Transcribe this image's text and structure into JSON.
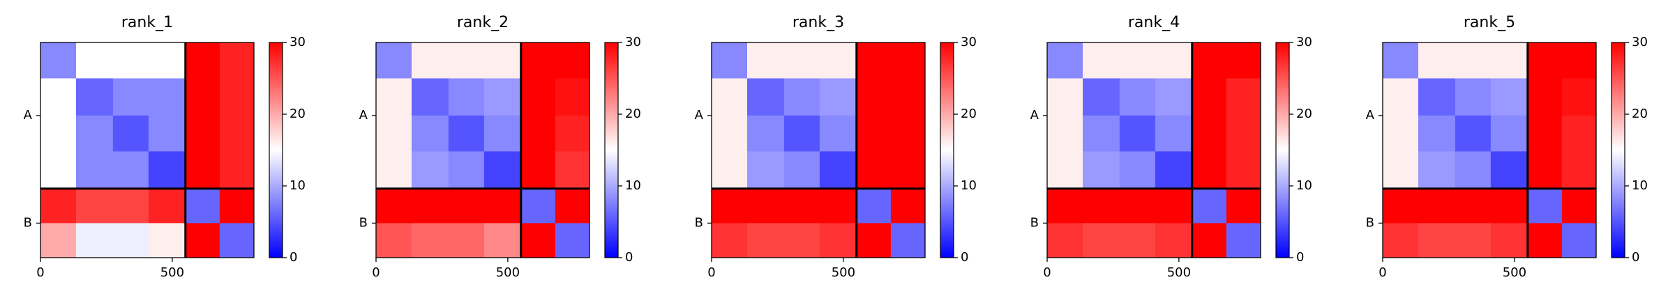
{
  "chart_data": [
    {
      "type": "heatmap",
      "title": "rank_1",
      "x_edges": [
        0,
        135,
        275,
        410,
        550,
        680,
        810
      ],
      "y_edges": [
        0,
        135,
        275,
        410,
        550,
        680,
        810
      ],
      "z": [
        [
          8,
          15,
          15,
          15,
          30,
          28
        ],
        [
          15,
          6,
          8,
          8,
          30,
          28
        ],
        [
          15,
          8,
          5,
          8,
          30,
          28
        ],
        [
          15,
          8,
          8,
          4,
          30,
          28
        ],
        [
          28,
          26,
          26,
          28,
          6,
          30
        ],
        [
          20,
          14,
          14,
          16,
          30,
          6
        ]
      ],
      "chain_breaks": [
        550
      ],
      "colormap": [
        "#0000ff",
        "#ffffff",
        "#ff0000"
      ],
      "clim": [
        0,
        30
      ],
      "cticks": [
        0,
        10,
        20,
        30
      ],
      "xlim": [
        0,
        810
      ],
      "ylim": [
        810,
        0
      ],
      "xticks": [
        0,
        500
      ],
      "yticks": [
        {
          "value": 275,
          "label": "A"
        },
        {
          "value": 680,
          "label": "B"
        }
      ]
    },
    {
      "type": "heatmap",
      "title": "rank_2",
      "x_edges": [
        0,
        135,
        275,
        410,
        550,
        680,
        810
      ],
      "y_edges": [
        0,
        135,
        275,
        410,
        550,
        680,
        810
      ],
      "z": [
        [
          8,
          16,
          16,
          16,
          30,
          30
        ],
        [
          16,
          6,
          8,
          9,
          30,
          29
        ],
        [
          16,
          8,
          5,
          8,
          30,
          28
        ],
        [
          16,
          9,
          8,
          4,
          30,
          27
        ],
        [
          30,
          30,
          30,
          30,
          6,
          30
        ],
        [
          25,
          24,
          24,
          22,
          30,
          6
        ]
      ],
      "chain_breaks": [
        550
      ],
      "colormap": [
        "#0000ff",
        "#ffffff",
        "#ff0000"
      ],
      "clim": [
        0,
        30
      ],
      "cticks": [
        0,
        10,
        20,
        30
      ],
      "xlim": [
        0,
        810
      ],
      "ylim": [
        810,
        0
      ],
      "xticks": [
        0,
        500
      ],
      "yticks": [
        {
          "value": 275,
          "label": "A"
        },
        {
          "value": 680,
          "label": "B"
        }
      ]
    },
    {
      "type": "heatmap",
      "title": "rank_3",
      "x_edges": [
        0,
        135,
        275,
        410,
        550,
        680,
        810
      ],
      "y_edges": [
        0,
        135,
        275,
        410,
        550,
        680,
        810
      ],
      "z": [
        [
          8,
          16,
          16,
          16,
          30,
          30
        ],
        [
          16,
          6,
          8,
          9,
          30,
          30
        ],
        [
          16,
          8,
          5,
          8,
          30,
          30
        ],
        [
          16,
          9,
          8,
          4,
          30,
          30
        ],
        [
          30,
          30,
          30,
          30,
          6,
          30
        ],
        [
          27,
          26,
          26,
          27,
          30,
          6
        ]
      ],
      "chain_breaks": [
        550
      ],
      "colormap": [
        "#0000ff",
        "#ffffff",
        "#ff0000"
      ],
      "clim": [
        0,
        30
      ],
      "cticks": [
        0,
        10,
        20,
        30
      ],
      "xlim": [
        0,
        810
      ],
      "ylim": [
        810,
        0
      ],
      "xticks": [
        0,
        500
      ],
      "yticks": [
        {
          "value": 275,
          "label": "A"
        },
        {
          "value": 680,
          "label": "B"
        }
      ]
    },
    {
      "type": "heatmap",
      "title": "rank_4",
      "x_edges": [
        0,
        135,
        275,
        410,
        550,
        680,
        810
      ],
      "y_edges": [
        0,
        135,
        275,
        410,
        550,
        680,
        810
      ],
      "z": [
        [
          8,
          16,
          16,
          16,
          30,
          30
        ],
        [
          16,
          6,
          8,
          9,
          30,
          28
        ],
        [
          16,
          8,
          5,
          8,
          30,
          28
        ],
        [
          16,
          9,
          8,
          4,
          30,
          28
        ],
        [
          30,
          30,
          30,
          30,
          6,
          30
        ],
        [
          27,
          26,
          26,
          27,
          30,
          6
        ]
      ],
      "chain_breaks": [
        550
      ],
      "colormap": [
        "#0000ff",
        "#ffffff",
        "#ff0000"
      ],
      "clim": [
        0,
        30
      ],
      "cticks": [
        0,
        10,
        20,
        30
      ],
      "xlim": [
        0,
        810
      ],
      "ylim": [
        810,
        0
      ],
      "xticks": [
        0,
        500
      ],
      "yticks": [
        {
          "value": 275,
          "label": "A"
        },
        {
          "value": 680,
          "label": "B"
        }
      ]
    },
    {
      "type": "heatmap",
      "title": "rank_5",
      "x_edges": [
        0,
        135,
        275,
        410,
        550,
        680,
        810
      ],
      "y_edges": [
        0,
        135,
        275,
        410,
        550,
        680,
        810
      ],
      "z": [
        [
          8,
          16,
          16,
          16,
          30,
          30
        ],
        [
          16,
          6,
          8,
          9,
          30,
          29
        ],
        [
          16,
          8,
          5,
          8,
          30,
          28
        ],
        [
          16,
          9,
          8,
          4,
          30,
          28
        ],
        [
          30,
          30,
          30,
          30,
          6,
          30
        ],
        [
          27,
          26,
          26,
          27,
          30,
          6
        ]
      ],
      "chain_breaks": [
        550
      ],
      "colormap": [
        "#0000ff",
        "#ffffff",
        "#ff0000"
      ],
      "clim": [
        0,
        30
      ],
      "cticks": [
        0,
        10,
        20,
        30
      ],
      "xlim": [
        0,
        810
      ],
      "ylim": [
        810,
        0
      ],
      "xticks": [
        0,
        500
      ],
      "yticks": [
        {
          "value": 275,
          "label": "A"
        },
        {
          "value": 680,
          "label": "B"
        }
      ]
    }
  ]
}
